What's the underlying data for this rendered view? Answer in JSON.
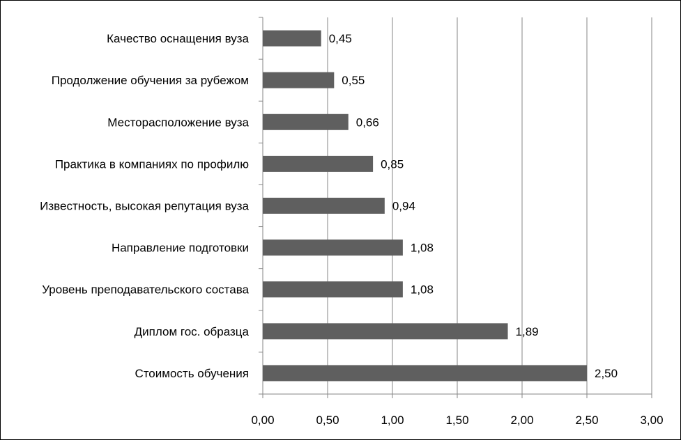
{
  "chart_data": {
    "type": "bar",
    "orientation": "horizontal",
    "categories": [
      "Стоимость обучения",
      "Диплом гос. образца",
      "Уровень преподавательского состава",
      "Направление подготовки",
      "Известность, высокая репутация вуза",
      "Практика в компаниях по профилю",
      "Месторасположение вуза",
      "Продолжение обучения за рубежом",
      "Качество оснащения вуза"
    ],
    "values": [
      2.5,
      1.89,
      1.08,
      1.08,
      0.94,
      0.85,
      0.66,
      0.55,
      0.45
    ],
    "value_labels": [
      "2,50",
      "1,89",
      "1,08",
      "1,08",
      "0,94",
      "0,85",
      "0,66",
      "0,55",
      "0,45"
    ],
    "x_ticks": [
      "0,00",
      "0,50",
      "1,00",
      "1,50",
      "2,00",
      "2,50",
      "3,00"
    ],
    "xlim": [
      0,
      3
    ],
    "title": "",
    "xlabel": "",
    "ylabel": "",
    "grid": "vertical",
    "legend": "none",
    "colors": {
      "bar": "#5f5f5f",
      "grid": "#868686",
      "axis": "#868686"
    }
  }
}
